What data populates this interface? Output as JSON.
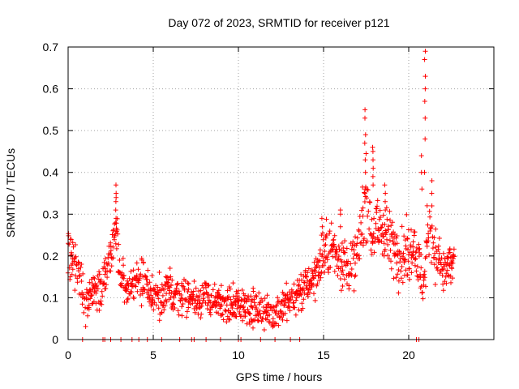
{
  "chart_data": {
    "type": "scatter",
    "title": "Day 072 of 2023, SRMTID for receiver p121",
    "xlabel": "GPS time / hours",
    "ylabel": "SRMTID / TECUs",
    "xlim": [
      0,
      25
    ],
    "ylim": [
      0,
      0.7
    ],
    "xticks": [
      0,
      5,
      10,
      15,
      20
    ],
    "yticks": [
      0,
      0.1,
      0.2,
      0.3,
      0.4,
      0.5,
      0.6,
      0.7
    ],
    "xtick_labels": [
      "0",
      "5",
      "10",
      "15",
      "20"
    ],
    "ytick_labels": [
      "0",
      "0.1",
      "0.2",
      "0.3",
      "0.4",
      "0.5",
      "0.6",
      "0.7"
    ],
    "grid": true,
    "marker": "+",
    "color": "#ff0000",
    "trend": [
      [
        0.0,
        0.23
      ],
      [
        0.3,
        0.2
      ],
      [
        0.7,
        0.16
      ],
      [
        1.0,
        0.09
      ],
      [
        1.5,
        0.11
      ],
      [
        2.0,
        0.12
      ],
      [
        2.3,
        0.18
      ],
      [
        2.6,
        0.22
      ],
      [
        2.8,
        0.27
      ],
      [
        3.0,
        0.15
      ],
      [
        3.5,
        0.12
      ],
      [
        4.0,
        0.15
      ],
      [
        4.5,
        0.14
      ],
      [
        5.0,
        0.11
      ],
      [
        5.5,
        0.1
      ],
      [
        6.0,
        0.12
      ],
      [
        6.5,
        0.1
      ],
      [
        7.0,
        0.11
      ],
      [
        7.5,
        0.1
      ],
      [
        8.0,
        0.1
      ],
      [
        8.5,
        0.09
      ],
      [
        9.0,
        0.09
      ],
      [
        9.5,
        0.08
      ],
      [
        10.0,
        0.09
      ],
      [
        10.5,
        0.08
      ],
      [
        11.0,
        0.07
      ],
      [
        11.5,
        0.07
      ],
      [
        12.0,
        0.06
      ],
      [
        12.5,
        0.08
      ],
      [
        13.0,
        0.09
      ],
      [
        13.5,
        0.11
      ],
      [
        14.0,
        0.13
      ],
      [
        14.5,
        0.16
      ],
      [
        15.0,
        0.2
      ],
      [
        15.5,
        0.22
      ],
      [
        16.0,
        0.19
      ],
      [
        16.5,
        0.17
      ],
      [
        17.0,
        0.2
      ],
      [
        17.3,
        0.3
      ],
      [
        17.5,
        0.35
      ],
      [
        17.8,
        0.26
      ],
      [
        18.2,
        0.26
      ],
      [
        18.5,
        0.27
      ],
      [
        19.0,
        0.23
      ],
      [
        19.5,
        0.2
      ],
      [
        20.0,
        0.21
      ],
      [
        20.3,
        0.24
      ],
      [
        20.6,
        0.18
      ],
      [
        20.9,
        0.12
      ],
      [
        21.1,
        0.25
      ],
      [
        21.3,
        0.27
      ],
      [
        21.6,
        0.2
      ],
      [
        22.0,
        0.16
      ],
      [
        22.4,
        0.17
      ],
      [
        22.7,
        0.2
      ]
    ],
    "spikes": [
      {
        "x": 2.8,
        "values": [
          0.29,
          0.31,
          0.33,
          0.34,
          0.35,
          0.37
        ]
      },
      {
        "x": 17.45,
        "values": [
          0.4,
          0.43,
          0.47,
          0.49,
          0.53,
          0.55
        ]
      },
      {
        "x": 17.9,
        "values": [
          0.37,
          0.39,
          0.41,
          0.43,
          0.45,
          0.46
        ]
      },
      {
        "x": 18.6,
        "values": [
          0.31,
          0.33,
          0.35,
          0.37
        ]
      },
      {
        "x": 20.75,
        "values": [
          0.36,
          0.4,
          0.44
        ]
      },
      {
        "x": 20.95,
        "values": [
          0.4,
          0.48,
          0.53,
          0.57,
          0.6,
          0.63,
          0.67,
          0.69
        ]
      },
      {
        "x": 21.35,
        "values": [
          0.32,
          0.35,
          0.38
        ]
      },
      {
        "x": 16.0,
        "values": [
          0.27,
          0.3,
          0.31
        ]
      },
      {
        "x": 14.9,
        "values": [
          0.25,
          0.27,
          0.29
        ]
      }
    ],
    "zero_points": [
      0.85,
      2.05,
      2.15,
      2.5,
      3.1,
      3.75,
      4.15,
      4.65,
      5.5,
      6.55,
      7.25,
      7.4,
      8.1,
      8.95,
      10.0,
      10.15,
      11.3,
      12.15,
      13.05,
      13.6,
      20.45,
      20.6
    ]
  }
}
